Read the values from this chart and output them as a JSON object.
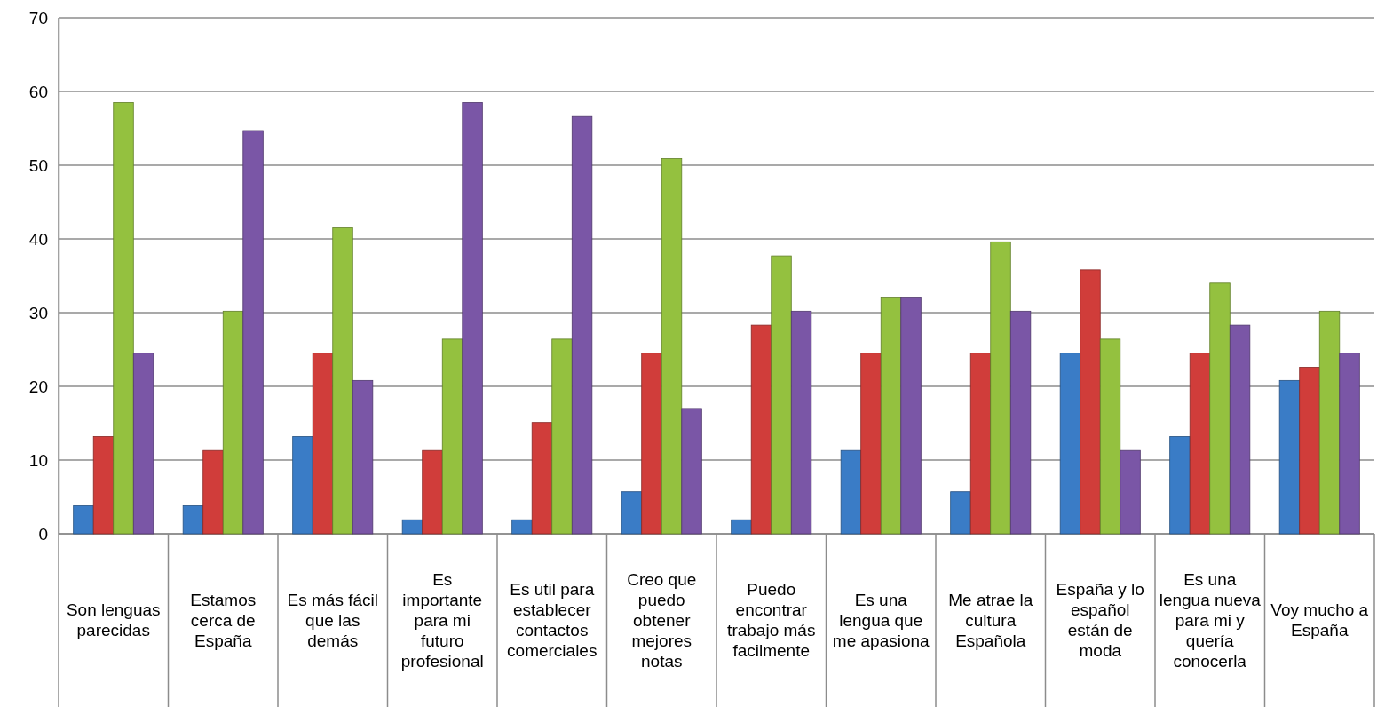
{
  "chart_data": {
    "type": "bar",
    "categories": [
      "Son lenguas parecidas",
      "Estamos cerca de España",
      "Es más fácil que las demás",
      "Es importante para mi futuro profesional",
      "Es util para establecer contactos comerciales",
      "Creo que puedo obtener mejores notas",
      "Puedo encontrar trabajo más facilmente",
      "Es una lengua que me apasiona",
      "Me atrae la cultura Española",
      "España y lo español están de moda",
      "Es una lengua nueva para mi y quería conocerla",
      "Voy mucho a España"
    ],
    "series": [
      {
        "color": "#3a7cc6",
        "values": [
          3.8,
          3.8,
          13.2,
          1.9,
          1.9,
          5.7,
          1.9,
          11.3,
          5.7,
          24.5,
          13.2,
          20.8
        ]
      },
      {
        "color": "#d03d3a",
        "values": [
          13.2,
          11.3,
          24.5,
          11.3,
          15.1,
          24.5,
          28.3,
          24.5,
          24.5,
          35.8,
          24.5,
          22.6
        ]
      },
      {
        "color": "#94c13f",
        "values": [
          58.5,
          30.2,
          41.5,
          26.4,
          26.4,
          50.9,
          37.7,
          32.1,
          39.6,
          26.4,
          34.0,
          30.2
        ]
      },
      {
        "color": "#7a56a6",
        "values": [
          24.5,
          54.7,
          20.8,
          58.5,
          56.6,
          17.0,
          30.2,
          32.1,
          30.2,
          11.3,
          28.3,
          24.5
        ]
      }
    ],
    "ylim": [
      0,
      70
    ],
    "yticks": [
      0,
      10,
      20,
      30,
      40,
      50,
      60,
      70
    ],
    "grid": "y"
  }
}
